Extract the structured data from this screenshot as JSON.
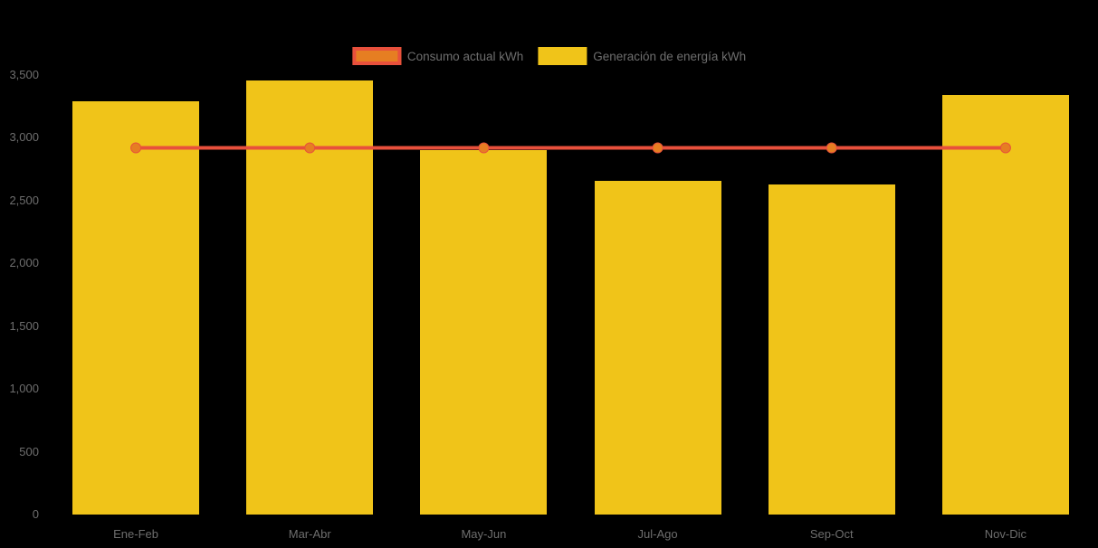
{
  "page": {
    "background": "#000000"
  },
  "colors": {
    "bar_yellow": "#F0C419",
    "line_red": "#E8503C",
    "marker_orange": "#E67E22",
    "text_gray": "#6E6E6E"
  },
  "legend": {
    "position": "top-center",
    "items": [
      {
        "label": "Consumo actual kWh",
        "swatch_type": "line-marker",
        "fill": "#E67E22",
        "stroke": "#E8503C"
      },
      {
        "label": "Generación de energía kWh",
        "swatch_type": "bar",
        "fill": "#F0C419"
      }
    ]
  },
  "chart_data": {
    "type": "bar",
    "subtype": "bar-and-line-combo",
    "title": "",
    "xlabel": "",
    "ylabel": "",
    "categories": [
      "Ene-Feb",
      "Mar-Abr",
      "May-Jun",
      "Jul-Ago",
      "Sep-Oct",
      "Nov-Dic"
    ],
    "series": [
      {
        "name": "Generación de energía kWh",
        "type": "bar",
        "color": "#F0C419",
        "values": [
          3290,
          3460,
          2900,
          2660,
          2630,
          3340
        ]
      },
      {
        "name": "Consumo actual kWh",
        "type": "line",
        "color": "#E8503C",
        "marker_color": "#E67E22",
        "values": [
          2920,
          2920,
          2920,
          2920,
          2920,
          2920
        ]
      }
    ],
    "ylim": [
      0,
      3500
    ],
    "ytick_step": 500,
    "ytick_labels": [
      "0",
      "500",
      "1,000",
      "1,500",
      "2,000",
      "2,500",
      "3,000",
      "3,500"
    ],
    "grid": false,
    "legend_position": "top"
  }
}
